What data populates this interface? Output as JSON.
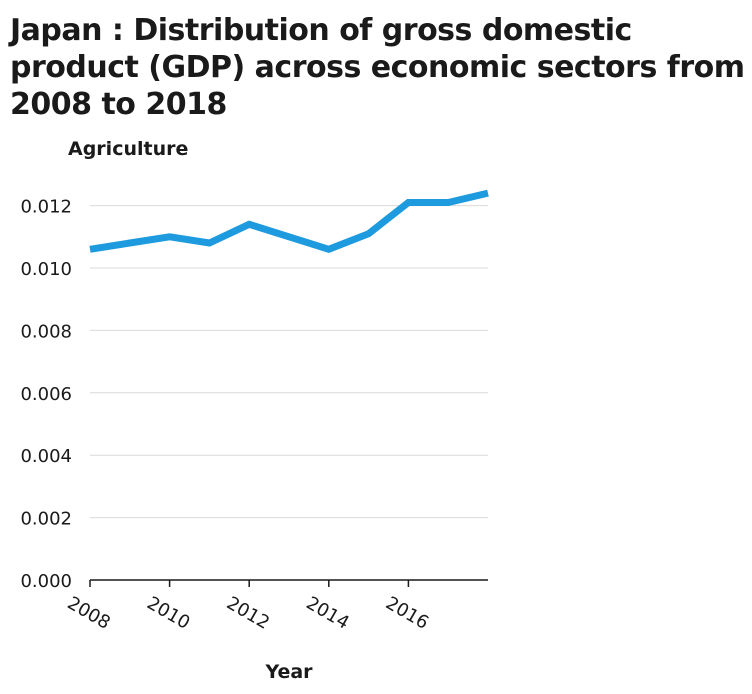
{
  "chart_data": {
    "type": "line",
    "title": "Japan : Distribution of gross domestic product (GDP) across economic sectors from 2008 to 2018",
    "xlabel": "Year",
    "ylabel": "Agriculture",
    "x": [
      2008,
      2009,
      2010,
      2011,
      2012,
      2013,
      2014,
      2015,
      2016,
      2017,
      2018
    ],
    "series": [
      {
        "values": [
          0.0106,
          0.0108,
          0.011,
          0.0108,
          0.0114,
          0.011,
          0.0106,
          0.0111,
          0.0121,
          0.0121,
          0.0124
        ]
      }
    ],
    "xlim": [
      2008,
      2018
    ],
    "ylim": [
      0,
      0.0125
    ],
    "x_ticks": [
      "2008",
      "2010",
      "2012",
      "2014",
      "2016"
    ],
    "y_ticks": [
      "0.000",
      "0.002",
      "0.004",
      "0.006",
      "0.008",
      "0.010",
      "0.012"
    ],
    "grid": "horizontal",
    "legend": "none",
    "line_color": "#1e9ade"
  }
}
